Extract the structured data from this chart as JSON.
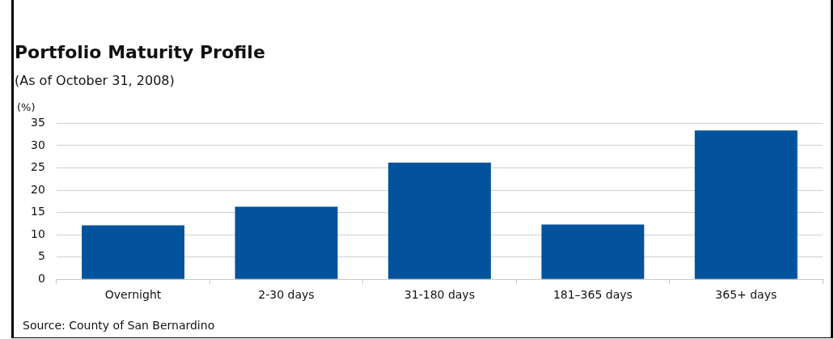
{
  "chart_data": {
    "type": "bar",
    "title": "Portfolio Maturity Profile",
    "subtitle": "(As of October 31, 2008)",
    "ylabel": "(%)",
    "categories": [
      "Overnight",
      "2-30 days",
      "31-180 days",
      "181–365 days",
      "365+ days"
    ],
    "values": [
      12.1,
      16.3,
      26.2,
      12.3,
      33.4
    ],
    "color": "#02539c",
    "ylim": [
      0,
      35
    ],
    "yticks": [
      0,
      5,
      10,
      15,
      20,
      25,
      30,
      35
    ],
    "grid": "y",
    "annotations": [
      "Source: County of San Bernardino"
    ]
  }
}
